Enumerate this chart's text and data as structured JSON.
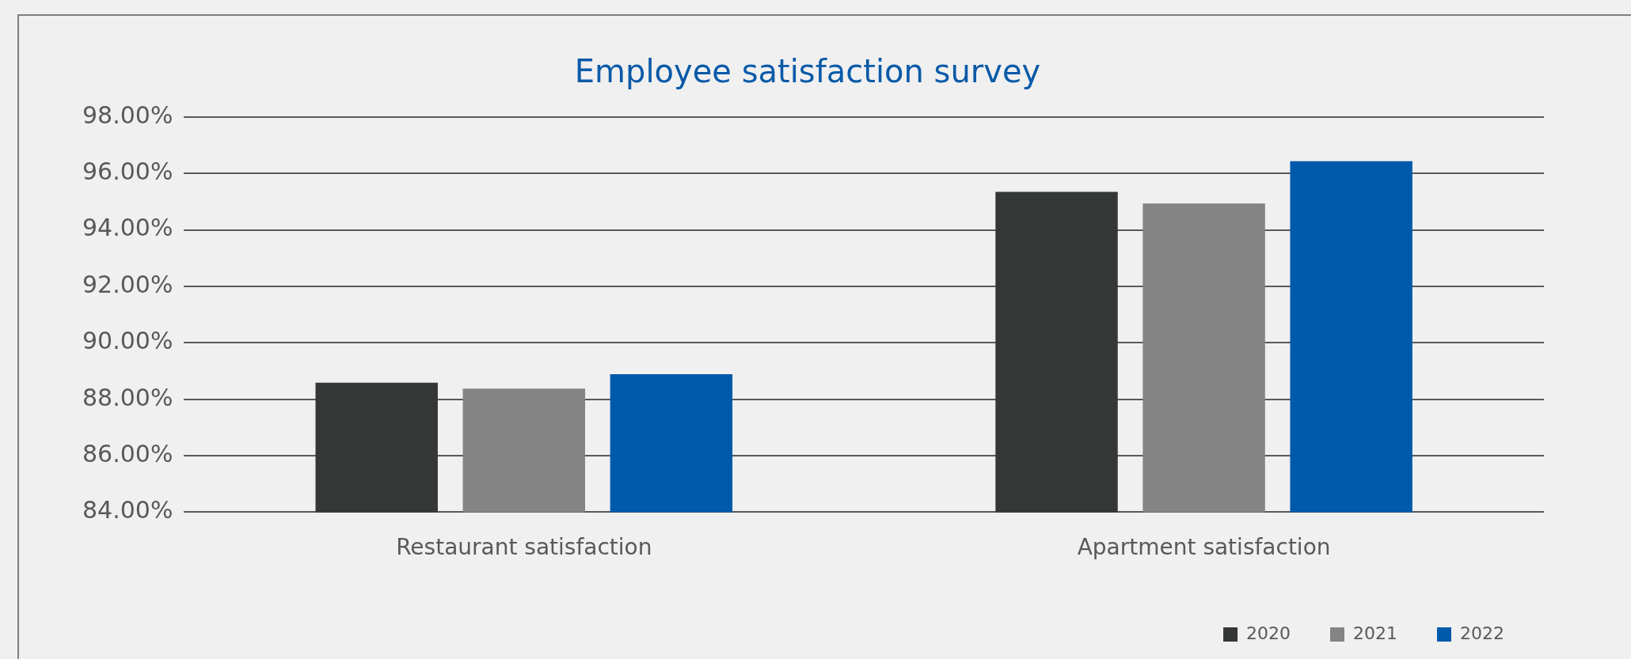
{
  "chart_data": {
    "type": "bar",
    "title": "Employee satisfaction survey",
    "categories": [
      "Restaurant satisfaction",
      "Apartment satisfaction"
    ],
    "series": [
      {
        "name": "2020",
        "color": "#353736",
        "values": [
          88.59,
          95.35
        ]
      },
      {
        "name": "2021",
        "color": "#838483",
        "values": [
          88.38,
          94.94
        ]
      },
      {
        "name": "2022",
        "color": "#005aab",
        "values": [
          88.89,
          96.44
        ]
      }
    ],
    "ylim": [
      84,
      98
    ],
    "yticks": [
      {
        "value": 84,
        "label": "84.00%"
      },
      {
        "value": 86,
        "label": "86.00%"
      },
      {
        "value": 88,
        "label": "88.00%"
      },
      {
        "value": 90,
        "label": "90.00%"
      },
      {
        "value": 92,
        "label": "92.00%"
      },
      {
        "value": 94,
        "label": "94.00%"
      },
      {
        "value": 96,
        "label": "96.00%"
      },
      {
        "value": 98,
        "label": "98.00%"
      }
    ],
    "grid": "y",
    "legend": "bottom right"
  }
}
